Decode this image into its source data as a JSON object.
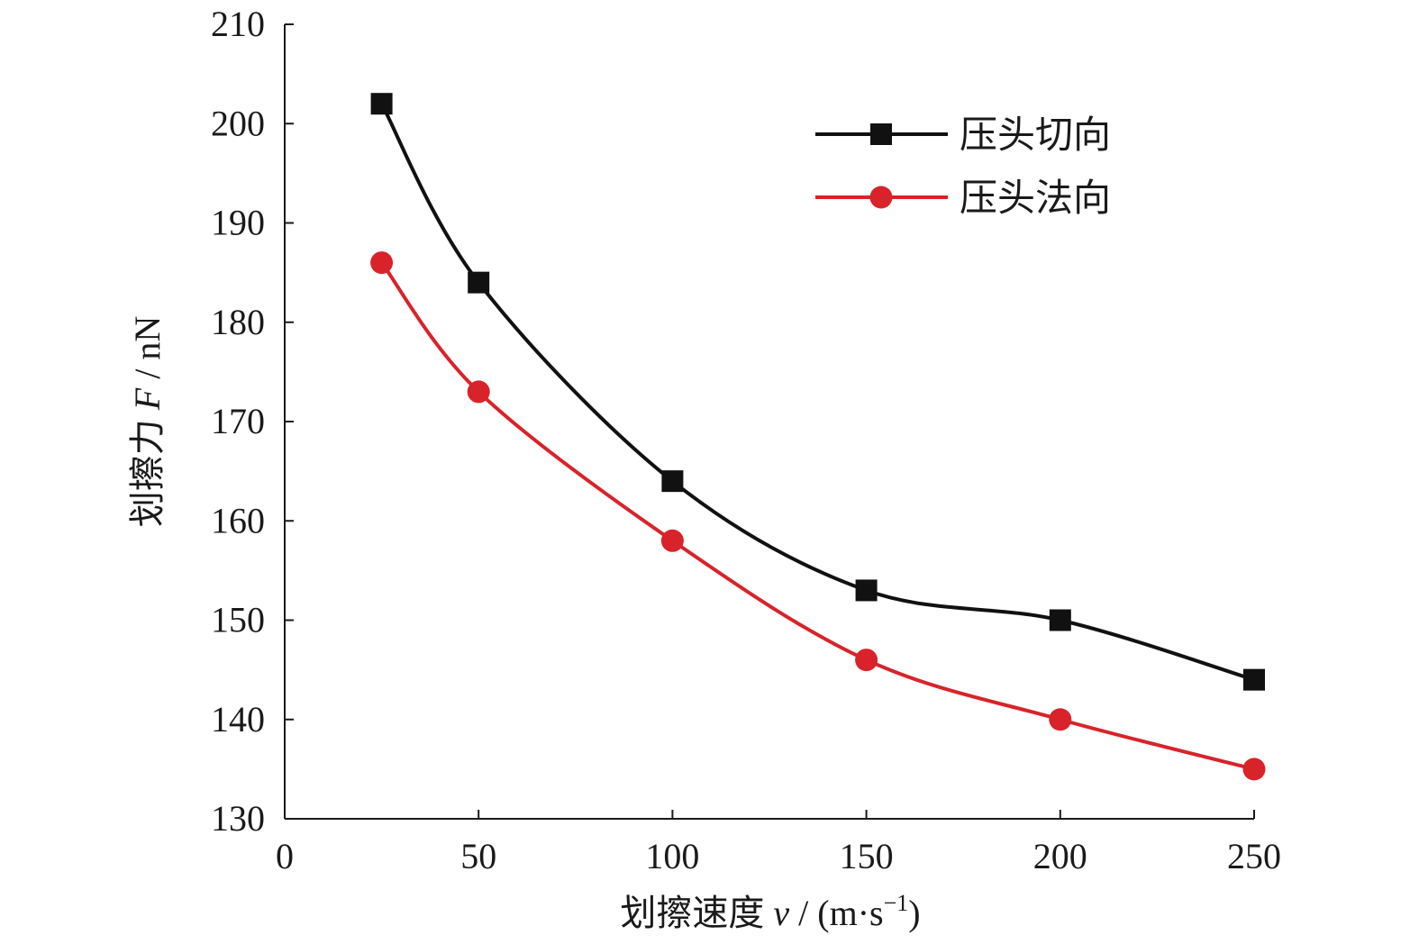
{
  "chart_data": {
    "type": "line",
    "title": "",
    "xlabel_prefix": "划擦速度 ",
    "xlabel_var": "v",
    "xlabel_unit": " / (m·s",
    "xlabel_sup": "−1",
    "xlabel_close": ")",
    "ylabel_prefix": "划擦力 ",
    "ylabel_var": "F",
    "ylabel_unit": " / nN",
    "xlim": [
      0,
      250
    ],
    "ylim": [
      130,
      210
    ],
    "xticks": [
      0,
      50,
      100,
      150,
      200,
      250
    ],
    "yticks": [
      130,
      140,
      150,
      160,
      170,
      180,
      190,
      200,
      210
    ],
    "legend_position": "top-right",
    "series": [
      {
        "name": "压头切向",
        "color": "#111111",
        "marker": "square",
        "x": [
          25,
          50,
          100,
          150,
          200,
          250
        ],
        "y": [
          202,
          184,
          164,
          153,
          150,
          144
        ]
      },
      {
        "name": "压头法向",
        "color": "#d8232a",
        "marker": "circle",
        "x": [
          25,
          50,
          100,
          150,
          200,
          250
        ],
        "y": [
          186,
          173,
          158,
          146,
          140,
          135
        ]
      }
    ]
  }
}
